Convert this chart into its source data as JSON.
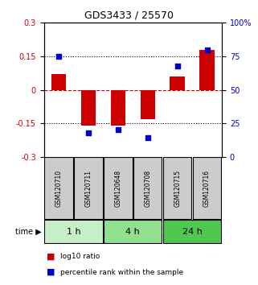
{
  "title": "GDS3433 / 25570",
  "samples": [
    "GSM120710",
    "GSM120711",
    "GSM120648",
    "GSM120708",
    "GSM120715",
    "GSM120716"
  ],
  "groups": [
    {
      "label": "1 h",
      "indices": [
        0,
        1
      ],
      "color": "#c8f0c8"
    },
    {
      "label": "4 h",
      "indices": [
        2,
        3
      ],
      "color": "#90e090"
    },
    {
      "label": "24 h",
      "indices": [
        4,
        5
      ],
      "color": "#4ec84e"
    }
  ],
  "log10_ratio": [
    0.07,
    -0.16,
    -0.16,
    -0.13,
    0.06,
    0.18
  ],
  "percentile_rank": [
    0.75,
    0.18,
    0.2,
    0.14,
    0.68,
    0.8
  ],
  "ylim": [
    -0.3,
    0.3
  ],
  "yticks_left": [
    -0.3,
    -0.15,
    0,
    0.15,
    0.3
  ],
  "yticks_right": [
    0,
    25,
    50,
    75,
    100
  ],
  "bar_color": "#cc0000",
  "dot_color": "#0000cc",
  "hline_0_color": "#cc0000",
  "hline_pm015_color": "#000000",
  "bar_width": 0.5,
  "dot_size": 25,
  "sample_box_color": "#cccccc",
  "legend_bar_label": "log10 ratio",
  "legend_dot_label": "percentile rank within the sample",
  "title_fontsize": 9,
  "tick_fontsize": 7,
  "sample_fontsize": 5.5,
  "time_fontsize": 8,
  "legend_fontsize": 6.5
}
